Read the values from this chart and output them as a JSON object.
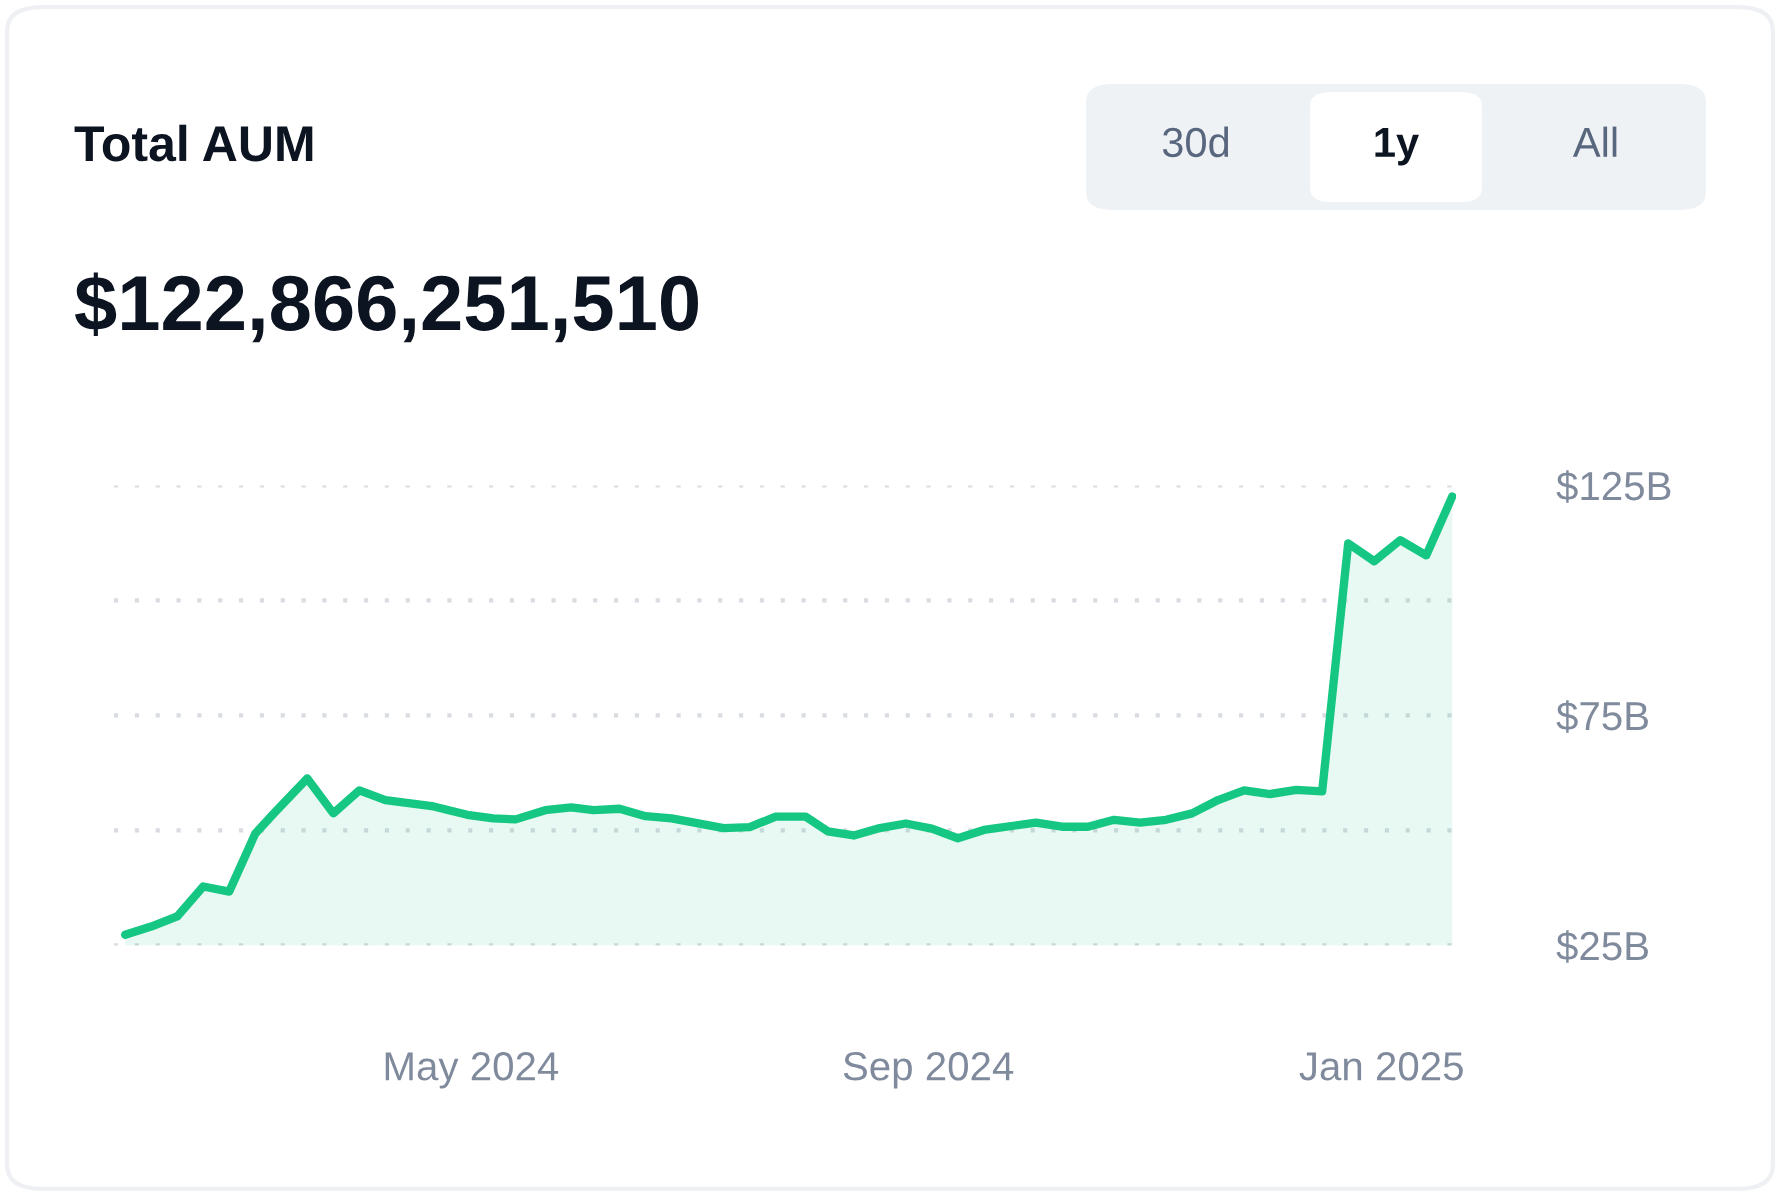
{
  "chart_data": {
    "type": "area",
    "title": "Total AUM",
    "subtitle": "$122,866,251,510",
    "annotations": [
      "30d",
      "1y",
      "All"
    ],
    "x": [
      "2024-01-29",
      "2024-02-05",
      "2024-02-12",
      "2024-02-19",
      "2024-02-26",
      "2024-03-04",
      "2024-03-09",
      "2024-03-18",
      "2024-03-25",
      "2024-04-01",
      "2024-04-08",
      "2024-04-21",
      "2024-04-30",
      "2024-05-07",
      "2024-05-13",
      "2024-05-21",
      "2024-05-28",
      "2024-06-03",
      "2024-06-10",
      "2024-06-17",
      "2024-06-24",
      "2024-07-08",
      "2024-07-15",
      "2024-07-22",
      "2024-07-30",
      "2024-08-05",
      "2024-08-12",
      "2024-08-19",
      "2024-08-26",
      "2024-09-02",
      "2024-09-09",
      "2024-09-16",
      "2024-09-30",
      "2024-10-07",
      "2024-10-14",
      "2024-10-21",
      "2024-10-28",
      "2024-11-04",
      "2024-11-11",
      "2024-11-18",
      "2024-11-25",
      "2024-12-02",
      "2024-12-09",
      "2024-12-16",
      "2024-12-23",
      "2024-12-30",
      "2025-01-06",
      "2025-01-13",
      "2025-01-20"
    ],
    "series": [
      {
        "color": "#16c784",
        "values": [
          27.3,
          29.1,
          31.3,
          37.8,
          36.7,
          49.3,
          53.7,
          61.3,
          53.7,
          58.7,
          56.6,
          55.2,
          53.4,
          52.6,
          52.4,
          54.4,
          55.0,
          54.4,
          54.7,
          53.1,
          52.6,
          50.5,
          50.7,
          53.0,
          53.0,
          49.8,
          48.9,
          50.5,
          51.5,
          50.4,
          48.3,
          50.1,
          51.7,
          50.8,
          50.8,
          52.3,
          51.7,
          52.3,
          53.7,
          56.6,
          58.7,
          57.9,
          58.8,
          58.5,
          112.4,
          108.5,
          113.1,
          109.8,
          122.6
        ]
      }
    ],
    "xlim": [
      "2024-01-26",
      "2025-01-21"
    ],
    "xticks": [
      {
        "value": "2024-05-01",
        "label": "May 2024"
      },
      {
        "value": "2024-09-01",
        "label": "Sep 2024"
      },
      {
        "value": "2025-01-01",
        "label": "Jan 2025"
      }
    ],
    "ylim": [
      25,
      125
    ],
    "yticks": [
      {
        "value": 25,
        "label": "$25B"
      },
      {
        "value": 50,
        "label": null
      },
      {
        "value": 75,
        "label": "$75B"
      },
      {
        "value": 100,
        "label": null
      },
      {
        "value": 125,
        "label": "$125B"
      }
    ],
    "grid": "y",
    "legend": false,
    "marker": "none",
    "line_style": "solid"
  }
}
